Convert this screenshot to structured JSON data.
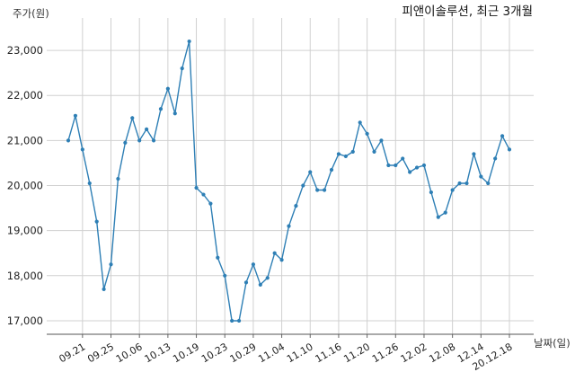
{
  "chart_data": {
    "type": "line",
    "title": "피앤이솔루션, 최근 3개월",
    "ylabel": "주가(원)",
    "xlabel": "날짜(일)",
    "ylim": [
      16700,
      23600
    ],
    "y_ticks": [
      17000,
      18000,
      19000,
      20000,
      21000,
      22000,
      23000
    ],
    "y_tick_labels": [
      "17,000",
      "18,000",
      "19,000",
      "20,000",
      "21,000",
      "22,000",
      "23,000"
    ],
    "x_ticks": [
      "09.21",
      "09.25",
      "10.06",
      "10.13",
      "10.19",
      "10.23",
      "10.29",
      "11.04",
      "11.10",
      "11.16",
      "11.20",
      "11.26",
      "12.02",
      "12.08",
      "12.14",
      "20.12.18"
    ],
    "x_tick_indices": [
      2,
      6,
      10,
      14,
      18,
      22,
      26,
      30,
      34,
      38,
      42,
      46,
      50,
      54,
      58,
      62
    ],
    "grid": true,
    "line_color": "#2e7fb5",
    "series": [
      {
        "values": [
          21000,
          21550,
          20800,
          20050,
          19200,
          17700,
          18250,
          20150,
          20950,
          21500,
          21000,
          21250,
          21000,
          21700,
          22150,
          21600,
          22600,
          23200,
          19950,
          19800,
          19600,
          18400,
          18000,
          17000,
          17000,
          17850,
          18250,
          17800,
          17950,
          18500,
          18350,
          19100,
          19550,
          20000,
          20300,
          19900,
          19900,
          20350,
          20700,
          20650,
          20750,
          21400,
          21150,
          20750,
          21000,
          20450,
          20450,
          20600,
          20300,
          20400,
          20450,
          19850,
          19300,
          19400,
          19900,
          20050,
          20050,
          20700,
          20200,
          20050,
          20600,
          21100,
          20800
        ]
      }
    ]
  }
}
